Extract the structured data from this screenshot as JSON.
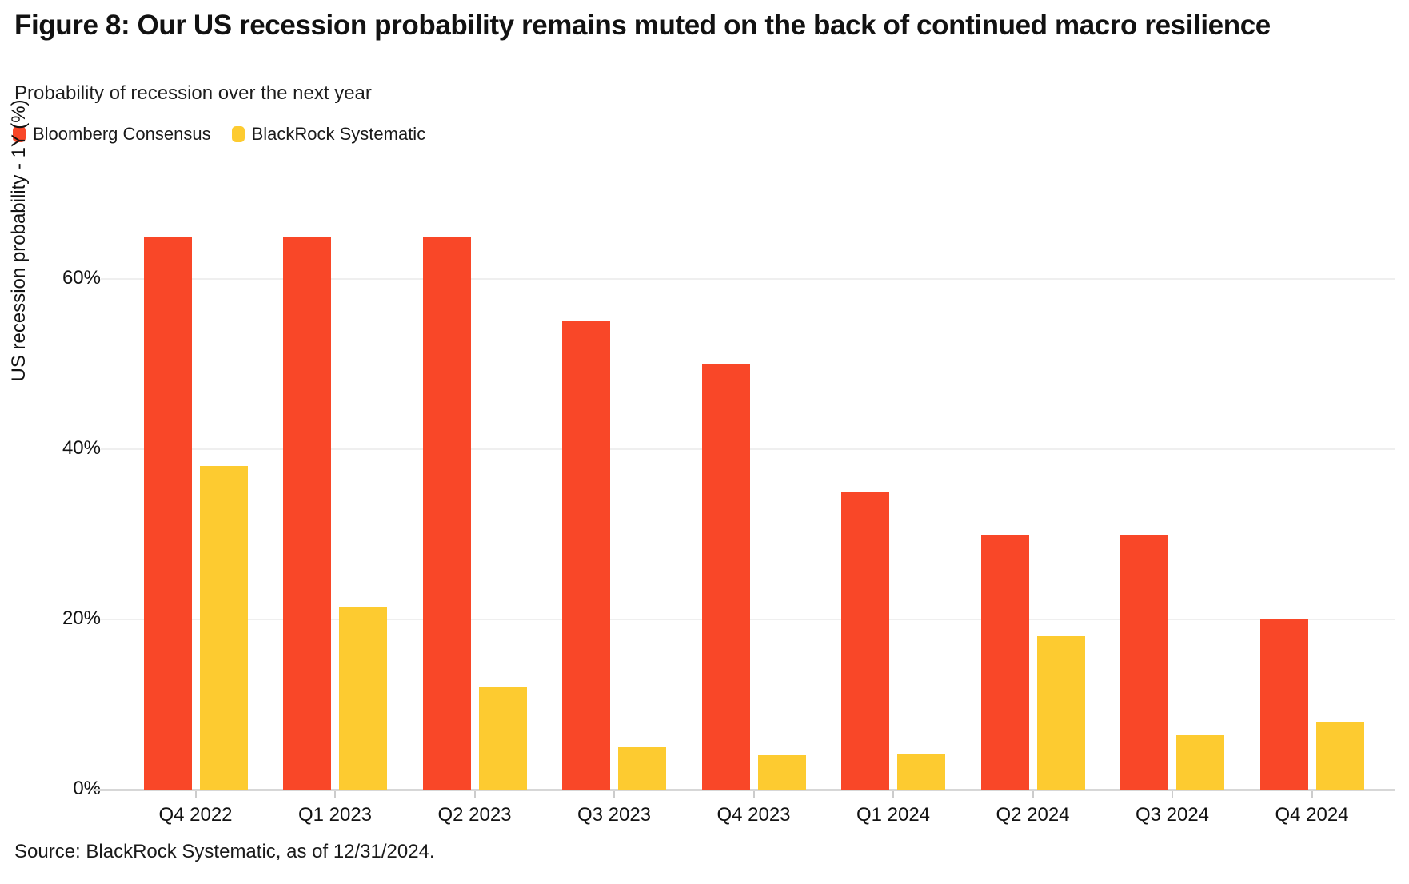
{
  "title": "Figure 8: Our US recession probability remains muted on the back of continued macro resilience",
  "subtitle": "Probability of recession over the next year",
  "source": "Source: BlackRock Systematic, as of 12/31/2024.",
  "colors": {
    "consensus": "#F94728",
    "systematic": "#FDCB30",
    "text": "#121212",
    "gridline": "#efefef",
    "axis": "#d7d7d7"
  },
  "chart_data": {
    "type": "bar",
    "categories": [
      "Q4 2022",
      "Q1 2023",
      "Q2 2023",
      "Q3 2023",
      "Q4 2023",
      "Q1 2024",
      "Q2 2024",
      "Q3 2024",
      "Q4 2024"
    ],
    "series": [
      {
        "name": "Bloomberg Consensus",
        "color_key": "consensus",
        "values": [
          65,
          65,
          65,
          55,
          50,
          35,
          30,
          30,
          20
        ]
      },
      {
        "name": "BlackRock Systematic",
        "color_key": "systematic",
        "values": [
          38,
          21.5,
          12,
          5,
          4,
          4.2,
          18,
          6.5,
          8
        ]
      }
    ],
    "title": "Probability of recession over the next year",
    "xlabel": "",
    "ylabel": "US recession probability - 1Y (%)",
    "yticks": [
      0,
      20,
      40,
      60
    ],
    "ytick_suffix": "%",
    "ylim": [
      0,
      69
    ],
    "grid": "horizontal",
    "legend_position": "top-left"
  }
}
